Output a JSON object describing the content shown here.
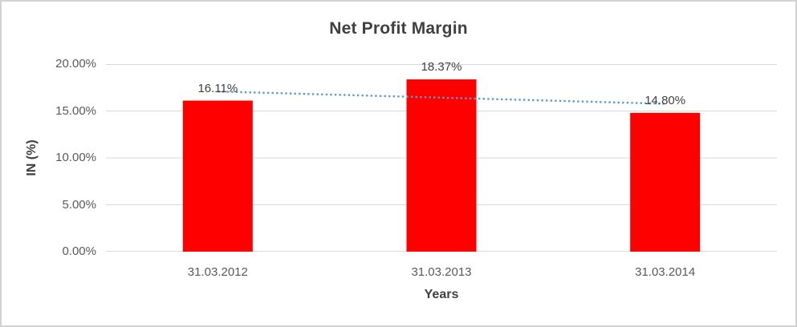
{
  "chart_data": {
    "type": "bar",
    "title": "Net Profit Margin",
    "xlabel": "Years",
    "ylabel": "IN (%)",
    "categories": [
      "31.03.2012",
      "31.03.2013",
      "31.03.2014"
    ],
    "series": [
      {
        "name": "Net Profit Margin",
        "values": [
          16.11,
          18.37,
          14.8
        ],
        "data_labels": [
          "16.11%",
          "18.37%",
          "14.80%"
        ],
        "color": "#FF0000"
      }
    ],
    "trendline": {
      "style": "dotted",
      "color": "#5B9BD5",
      "start_value": 17.08,
      "end_value": 15.77
    },
    "ylim": [
      0,
      20
    ],
    "yticks": [
      "0.00%",
      "5.00%",
      "10.00%",
      "15.00%",
      "20.00%"
    ],
    "grid": true,
    "legend": "none",
    "colors": {
      "gridline": "#D9D9D9",
      "tick_label": "#595959",
      "text": "#404040",
      "frame_border": "#D2D2D2",
      "background": "#FFFFFF"
    }
  }
}
